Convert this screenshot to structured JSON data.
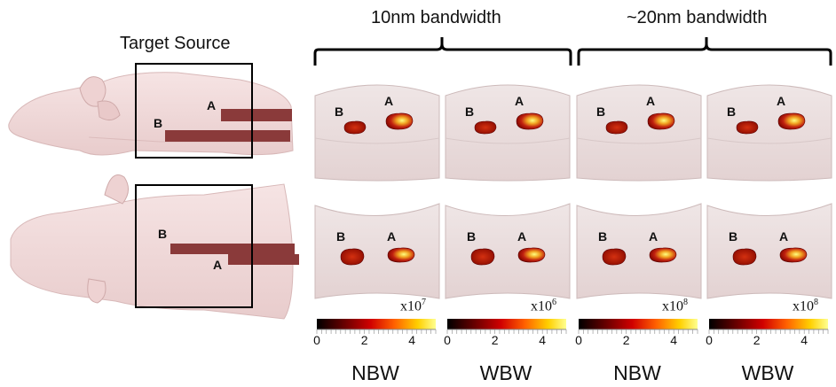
{
  "header": {
    "target_source": "Target Source",
    "bandwidth_10": "10nm bandwidth",
    "bandwidth_20": "~20nm bandwidth"
  },
  "markers": {
    "a": "A",
    "b": "B"
  },
  "columns": [
    {
      "label": "NBW",
      "multiplier": "x10",
      "exponent": "7"
    },
    {
      "label": "WBW",
      "multiplier": "x10",
      "exponent": "6"
    },
    {
      "label": "NBW",
      "multiplier": "x10",
      "exponent": "8"
    },
    {
      "label": "WBW",
      "multiplier": "x10",
      "exponent": "8"
    }
  ],
  "colorbar": {
    "ticks": [
      "0",
      "2",
      "4"
    ],
    "range": [
      0,
      5
    ]
  },
  "colors": {
    "skin": "#f3dede",
    "source": "#8a3a3a",
    "hot_low": "#7a0000",
    "hot_high": "#ffff66"
  }
}
